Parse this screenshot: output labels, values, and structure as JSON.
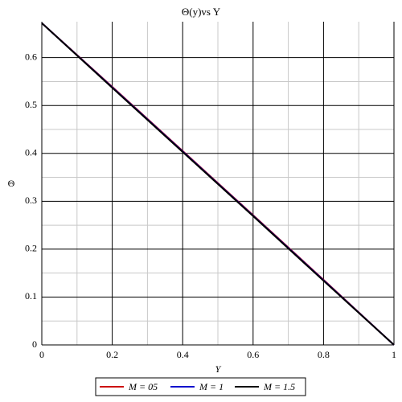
{
  "chart_data": {
    "type": "line",
    "title": "Θ(y)vs Y",
    "x_label": "Y",
    "y_label": "Θ",
    "x": [
      0,
      0.2,
      0.4,
      0.6,
      0.8,
      1
    ],
    "series": [
      {
        "name": "M = 05",
        "color": "#cc0000",
        "values": [
          0.672,
          0.539,
          0.405,
          0.271,
          0.136,
          0
        ]
      },
      {
        "name": "M = 1",
        "color": "#0000cc",
        "values": [
          0.672,
          0.538,
          0.404,
          0.27,
          0.135,
          0
        ]
      },
      {
        "name": "M = 1.5",
        "color": "#000000",
        "values": [
          0.672,
          0.537,
          0.403,
          0.269,
          0.134,
          0
        ]
      }
    ],
    "xlim": [
      0,
      1
    ],
    "ylim": [
      0,
      0.675
    ],
    "xticks": [
      0,
      0.2,
      0.4,
      0.6,
      0.8,
      1
    ],
    "yticks": [
      0,
      0.1,
      0.2,
      0.3,
      0.4,
      0.5,
      0.6
    ],
    "grid": true,
    "legend": "bottom"
  }
}
